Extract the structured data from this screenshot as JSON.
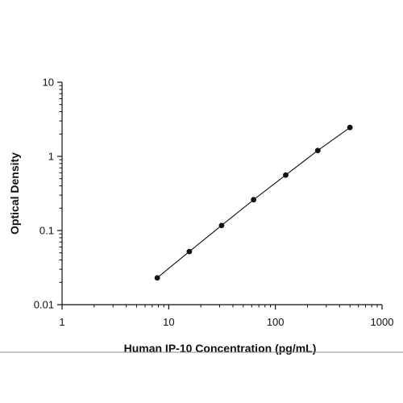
{
  "chart_data": {
    "type": "scatter",
    "title": "",
    "xlabel": "Human IP-10 Concentration (pg/mL)",
    "ylabel": "Optical Density",
    "xscale": "log",
    "yscale": "log",
    "xlim": [
      1,
      1000
    ],
    "ylim": [
      0.01,
      10
    ],
    "xticks": [
      1,
      10,
      100,
      1000
    ],
    "xtick_labels": [
      "1",
      "10",
      "100",
      "1000"
    ],
    "yticks": [
      0.01,
      0.1,
      1,
      10
    ],
    "ytick_labels": [
      "0.01",
      "0.1",
      "1",
      "10"
    ],
    "grid": false,
    "legend": "none",
    "series": [
      {
        "x": [
          7.81,
          15.6,
          31.3,
          62.5,
          125,
          250,
          500
        ],
        "y": [
          0.023,
          0.052,
          0.117,
          0.26,
          0.56,
          1.2,
          2.45
        ]
      }
    ],
    "fit_line": true,
    "colors": {
      "points": "#111111",
      "line": "#111111",
      "divider": "#8c8c8c"
    }
  }
}
